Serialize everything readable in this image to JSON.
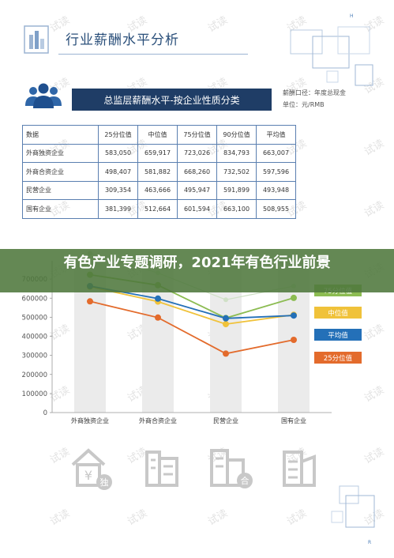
{
  "header": {
    "title": "行业薪酬水平分析"
  },
  "table_section": {
    "title": "总监层薪酬水平-按企业性质分类",
    "note_line1": "薪酬口径：年度总现金",
    "note_line2": "单位：元/RMB",
    "columns": [
      "数据",
      "25分位值",
      "中位值",
      "75分位值",
      "90分位值",
      "平均值"
    ],
    "rows": [
      {
        "label": "外商独资企业",
        "values": [
          "583,050",
          "659,917",
          "723,026",
          "834,793",
          "663,007"
        ]
      },
      {
        "label": "外商合资企业",
        "values": [
          "498,407",
          "581,882",
          "668,260",
          "732,502",
          "597,596"
        ]
      },
      {
        "label": "民营企业",
        "values": [
          "309,354",
          "463,666",
          "495,947",
          "591,899",
          "493,948"
        ]
      },
      {
        "label": "国有企业",
        "values": [
          "381,399",
          "512,664",
          "601,594",
          "663,100",
          "508,955"
        ]
      }
    ]
  },
  "banner": {
    "text": "有色产业专题调研，2021年有色行业前景"
  },
  "watermark_text": "试读",
  "corner_top": "H",
  "corner_bottom": "R",
  "bottom_icon_labels": [
    "¥",
    "独",
    "合"
  ],
  "colors": {
    "navy": "#1f3d66",
    "p75": "#8cbc52",
    "median": "#f0c23a",
    "average": "#2470b8",
    "p25": "#e36b2c",
    "banner": "#4e783c"
  },
  "chart_data": {
    "type": "line",
    "categories": [
      "外商独资企业",
      "外商合资企业",
      "民营企业",
      "国有企业"
    ],
    "y_ticks": [
      "0",
      "100000",
      "200000",
      "300000",
      "400000",
      "500000",
      "600000",
      "700000"
    ],
    "ylim": [
      0,
      800000
    ],
    "series": [
      {
        "name": "90分位值",
        "color": "#cfe0c6",
        "values": [
          834793,
          732502,
          591899,
          663100
        ]
      },
      {
        "name": "75分位值",
        "color": "#8cbc52",
        "values": [
          723026,
          668260,
          495947,
          601594
        ]
      },
      {
        "name": "中位值",
        "color": "#f0c23a",
        "values": [
          659917,
          581882,
          463666,
          512664
        ]
      },
      {
        "name": "平均值",
        "color": "#2470b8",
        "values": [
          663007,
          597596,
          493948,
          508955
        ]
      },
      {
        "name": "25分位值",
        "color": "#e36b2c",
        "values": [
          583050,
          498407,
          309354,
          381399
        ]
      }
    ],
    "legend_visible": [
      "75分位值",
      "中位值",
      "平均值",
      "25分位值"
    ],
    "legend_position": "right",
    "grid": false
  }
}
